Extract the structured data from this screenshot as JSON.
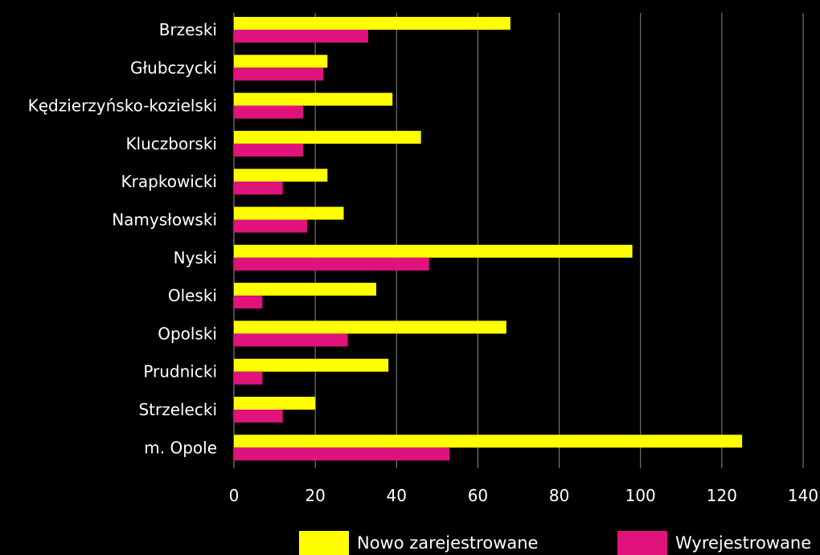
{
  "chart_data": {
    "type": "bar",
    "orientation": "horizontal",
    "categories": [
      "Brzeski",
      "Głubczycki",
      "Kędzierzyńsko-kozielski",
      "Kluczborski",
      "Krapkowicki",
      "Namysłowski",
      "Nyski",
      "Oleski",
      "Opolski",
      "Prudnicki",
      "Strzelecki",
      "m. Opole"
    ],
    "series": [
      {
        "name": "Nowo zarejestrowane",
        "color": "#ffff00",
        "values": [
          68,
          23,
          39,
          46,
          23,
          27,
          98,
          35,
          67,
          38,
          20,
          125
        ]
      },
      {
        "name": "Wyrejestrowane",
        "color": "#e0137c",
        "values": [
          33,
          22,
          17,
          17,
          12,
          18,
          48,
          7,
          28,
          7,
          12,
          53
        ]
      }
    ],
    "xlim": [
      0,
      140
    ],
    "xticks": [
      "0",
      "20",
      "40",
      "60",
      "80",
      "100",
      "120",
      "140"
    ],
    "grid": true,
    "legend_position": "bottom"
  }
}
